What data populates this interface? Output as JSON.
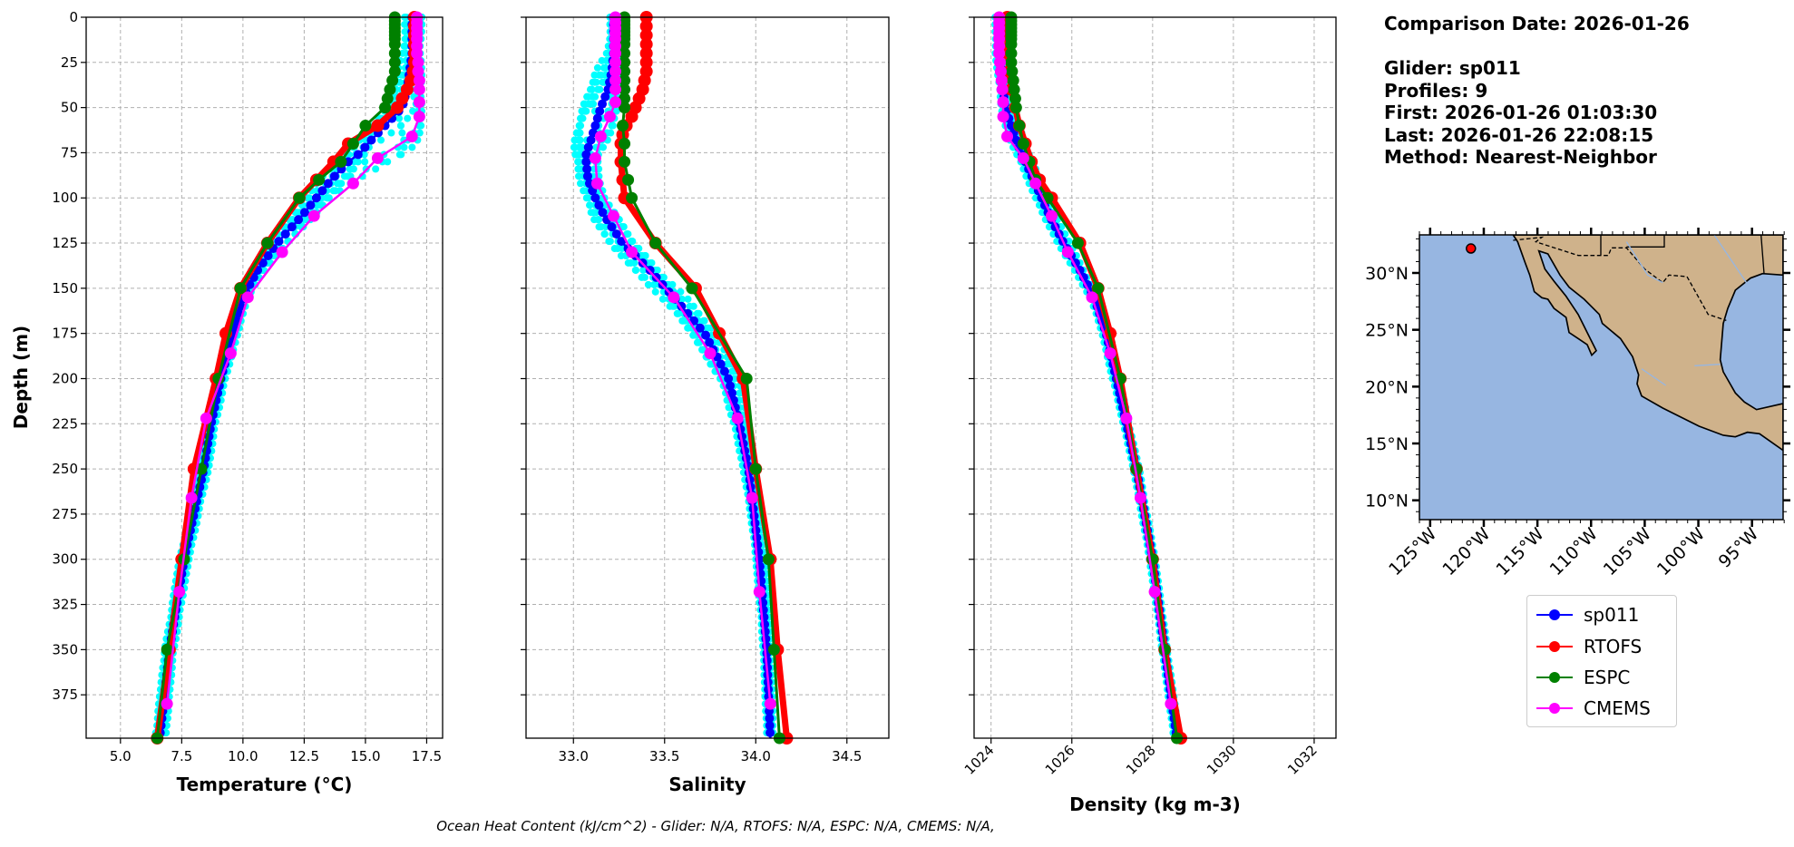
{
  "info": {
    "comparison_date": "Comparison Date: 2026-01-26",
    "glider": "Glider: sp011",
    "profiles": "Profiles: 9",
    "first": "First: 2026-01-26 01:03:30",
    "last": "Last: 2026-01-26 22:08:15",
    "method": "Method: Nearest-Neighbor"
  },
  "ohc_text": "Ocean Heat Content (kJ/cm^2) - Glider: N/A,  RTOFS: N/A,  ESPC: N/A,  CMEMS: N/A,",
  "colors": {
    "sp011": "#0000ff",
    "RTOFS": "#ff0000",
    "ESPC": "#008000",
    "CMEMS": "#ff00ff",
    "profiles": "#00ffff",
    "ocean": "#97b6e1",
    "land": "#cfb28b"
  },
  "legend": [
    {
      "label": "sp011",
      "color": "#0000ff"
    },
    {
      "label": "RTOFS",
      "color": "#ff0000"
    },
    {
      "label": "ESPC",
      "color": "#008000"
    },
    {
      "label": "CMEMS",
      "color": "#ff00ff"
    }
  ],
  "map": {
    "lat_ticks": [
      "30°N",
      "25°N",
      "20°N",
      "15°N",
      "10°N"
    ],
    "lat_values": [
      30,
      25,
      20,
      15,
      10
    ],
    "lon_ticks": [
      "125°W",
      "120°W",
      "115°W",
      "110°W",
      "105°W",
      "100°W",
      "95°W"
    ],
    "lon_values": [
      -125,
      -120,
      -115,
      -110,
      -105,
      -100,
      -95
    ],
    "extent": {
      "lon": [
        -126.0,
        -92.1
      ],
      "lat": [
        8.3,
        33.35
      ]
    },
    "glider_position": {
      "lon": -121.2,
      "lat": 32.15
    }
  },
  "chart_data": [
    {
      "type": "line",
      "xlabel": "Temperature (°C)",
      "ylabel": "Depth (m)",
      "xlim": [
        3.6,
        18.15
      ],
      "ylim": [
        399,
        0
      ],
      "xticks": [
        5.0,
        7.5,
        10.0,
        12.5,
        15.0,
        17.5
      ],
      "xtick_labels": [
        "5.0",
        "7.5",
        "10.0",
        "12.5",
        "15.0",
        "17.5"
      ],
      "yticks": [
        0,
        25,
        50,
        75,
        100,
        125,
        150,
        175,
        200,
        225,
        250,
        275,
        300,
        325,
        350,
        375
      ],
      "grid": true,
      "profiles_envelope": {
        "depth": [
          0,
          10,
          20,
          30,
          40,
          50,
          60,
          70,
          75,
          80,
          90,
          100,
          110,
          125,
          140,
          155,
          175,
          200,
          225,
          250,
          275,
          300,
          325,
          350,
          375,
          399
        ],
        "min": [
          16.6,
          16.6,
          16.5,
          16.3,
          16.1,
          15.9,
          15.3,
          14.6,
          14.2,
          13.7,
          13.1,
          12.6,
          12.0,
          11.1,
          10.3,
          9.8,
          9.4,
          8.9,
          8.5,
          8.2,
          7.8,
          7.4,
          7.1,
          6.8,
          6.6,
          6.4
        ],
        "max": [
          17.3,
          17.3,
          17.3,
          17.3,
          17.3,
          17.3,
          17.3,
          17.1,
          16.8,
          16.0,
          14.6,
          13.6,
          12.9,
          11.8,
          10.9,
          10.2,
          9.8,
          9.3,
          8.9,
          8.6,
          8.2,
          7.8,
          7.5,
          7.2,
          7.0,
          6.9
        ]
      },
      "series": [
        {
          "name": "sp011",
          "depth": [
            0,
            10,
            20,
            30,
            40,
            50,
            60,
            70,
            75,
            80,
            90,
            100,
            110,
            125,
            140,
            155,
            175,
            200,
            225,
            250,
            275,
            300,
            325,
            350,
            375,
            399
          ],
          "values": [
            16.9,
            16.9,
            16.9,
            16.8,
            16.7,
            16.5,
            15.8,
            15.1,
            14.8,
            14.3,
            13.6,
            13.0,
            12.4,
            11.4,
            10.6,
            10.0,
            9.6,
            9.1,
            8.7,
            8.4,
            8.0,
            7.6,
            7.3,
            7.0,
            6.8,
            6.6
          ]
        },
        {
          "name": "RTOFS",
          "depth": [
            0,
            5,
            10,
            15,
            20,
            25,
            30,
            35,
            40,
            45,
            50,
            60,
            70,
            80,
            90,
            100,
            125,
            150,
            175,
            200,
            250,
            300,
            350,
            399
          ],
          "values": [
            17.0,
            17.0,
            17.0,
            17.0,
            17.0,
            17.0,
            16.95,
            16.85,
            16.7,
            16.5,
            16.3,
            15.5,
            14.3,
            13.7,
            13.0,
            12.3,
            11.0,
            9.9,
            9.3,
            8.9,
            8.0,
            7.5,
            7.0,
            6.5
          ]
        },
        {
          "name": "ESPC",
          "depth": [
            0,
            2,
            4,
            6,
            8,
            10,
            12,
            15,
            20,
            25,
            30,
            35,
            40,
            45,
            50,
            60,
            70,
            80,
            90,
            100,
            125,
            150,
            200,
            250,
            300,
            350,
            399
          ],
          "values": [
            16.2,
            16.2,
            16.2,
            16.2,
            16.2,
            16.2,
            16.2,
            16.2,
            16.2,
            16.2,
            16.2,
            16.1,
            16.0,
            15.9,
            15.8,
            15.0,
            14.5,
            14.0,
            13.1,
            12.3,
            11.0,
            9.9,
            9.0,
            8.3,
            7.6,
            6.9,
            6.5
          ]
        },
        {
          "name": "CMEMS",
          "depth": [
            0,
            3,
            6,
            9,
            12,
            16,
            20,
            25,
            30,
            35,
            40,
            47,
            55,
            66,
            78,
            92,
            110,
            130,
            155,
            186,
            222,
            266,
            318,
            380
          ],
          "values": [
            17.1,
            17.1,
            17.1,
            17.1,
            17.1,
            17.1,
            17.1,
            17.15,
            17.15,
            17.2,
            17.2,
            17.2,
            17.2,
            16.9,
            15.5,
            14.5,
            12.9,
            11.6,
            10.2,
            9.5,
            8.5,
            7.9,
            7.4,
            6.9
          ]
        }
      ]
    },
    {
      "type": "line",
      "xlabel": "Salinity",
      "xlim": [
        32.74,
        34.73
      ],
      "ylim": [
        399,
        0
      ],
      "xticks": [
        33.0,
        33.5,
        34.0,
        34.5
      ],
      "xtick_labels": [
        "33.0",
        "33.5",
        "34.0",
        "34.5"
      ],
      "yticks": [
        0,
        25,
        50,
        75,
        100,
        125,
        150,
        175,
        200,
        225,
        250,
        275,
        300,
        325,
        350,
        375
      ],
      "grid": true,
      "profiles_envelope": {
        "depth": [
          0,
          10,
          20,
          30,
          40,
          50,
          60,
          70,
          75,
          80,
          90,
          100,
          110,
          125,
          140,
          155,
          175,
          200,
          225,
          250,
          275,
          300,
          325,
          350,
          375,
          399
        ],
        "min": [
          33.2,
          33.2,
          33.18,
          33.12,
          33.08,
          33.05,
          33.03,
          33.0,
          33.0,
          33.01,
          33.03,
          33.07,
          33.1,
          33.2,
          33.33,
          33.48,
          33.65,
          33.8,
          33.88,
          33.93,
          33.97,
          34.0,
          34.02,
          34.04,
          34.05,
          34.06
        ],
        "max": [
          33.25,
          33.25,
          33.25,
          33.25,
          33.25,
          33.24,
          33.22,
          33.18,
          33.15,
          33.14,
          33.14,
          33.18,
          33.24,
          33.33,
          33.47,
          33.62,
          33.78,
          33.92,
          33.95,
          33.99,
          34.02,
          34.05,
          34.07,
          34.08,
          34.09,
          34.1
        ]
      },
      "series": [
        {
          "name": "sp011",
          "depth": [
            0,
            10,
            20,
            30,
            40,
            50,
            60,
            70,
            75,
            80,
            90,
            100,
            110,
            125,
            140,
            155,
            175,
            200,
            225,
            250,
            275,
            300,
            325,
            350,
            375,
            399
          ],
          "values": [
            33.22,
            33.22,
            33.22,
            33.21,
            33.19,
            33.15,
            33.12,
            33.09,
            33.07,
            33.07,
            33.08,
            33.12,
            33.17,
            33.27,
            33.42,
            33.55,
            33.72,
            33.85,
            33.91,
            33.96,
            33.99,
            34.02,
            34.04,
            34.06,
            34.07,
            34.08
          ]
        },
        {
          "name": "RTOFS",
          "depth": [
            0,
            5,
            10,
            15,
            20,
            25,
            30,
            35,
            40,
            45,
            50,
            55,
            60,
            65,
            70,
            80,
            90,
            100,
            125,
            150,
            175,
            200,
            250,
            300,
            350,
            399
          ],
          "values": [
            33.4,
            33.4,
            33.4,
            33.4,
            33.4,
            33.4,
            33.4,
            33.39,
            33.38,
            33.36,
            33.34,
            33.32,
            33.29,
            33.27,
            33.26,
            33.26,
            33.27,
            33.28,
            33.45,
            33.67,
            33.8,
            33.93,
            34.0,
            34.08,
            34.12,
            34.17
          ]
        },
        {
          "name": "ESPC",
          "depth": [
            0,
            2,
            4,
            6,
            8,
            10,
            12,
            15,
            20,
            25,
            30,
            35,
            40,
            45,
            50,
            60,
            70,
            80,
            90,
            100,
            125,
            150,
            200,
            250,
            300,
            350,
            399
          ],
          "values": [
            33.28,
            33.28,
            33.28,
            33.28,
            33.28,
            33.28,
            33.28,
            33.28,
            33.28,
            33.28,
            33.28,
            33.28,
            33.28,
            33.28,
            33.28,
            33.27,
            33.28,
            33.28,
            33.3,
            33.32,
            33.45,
            33.65,
            33.95,
            34.0,
            34.07,
            34.1,
            34.13
          ]
        },
        {
          "name": "CMEMS",
          "depth": [
            0,
            3,
            6,
            9,
            12,
            16,
            20,
            25,
            30,
            35,
            40,
            47,
            55,
            66,
            78,
            92,
            110,
            130,
            155,
            186,
            222,
            266,
            318,
            380
          ],
          "values": [
            33.23,
            33.23,
            33.23,
            33.23,
            33.23,
            33.23,
            33.23,
            33.23,
            33.23,
            33.23,
            33.23,
            33.23,
            33.2,
            33.15,
            33.12,
            33.13,
            33.22,
            33.32,
            33.55,
            33.75,
            33.9,
            33.98,
            34.02,
            34.08
          ]
        }
      ]
    },
    {
      "type": "line",
      "xlabel": "Density (kg m-3)",
      "xlim": [
        1023.58,
        1032.54
      ],
      "ylim": [
        399,
        0
      ],
      "xticks": [
        1024,
        1026,
        1028,
        1030,
        1032
      ],
      "xtick_labels": [
        "1024",
        "1026",
        "1028",
        "1030",
        "1032"
      ],
      "yticks": [
        0,
        25,
        50,
        75,
        100,
        125,
        150,
        175,
        200,
        225,
        250,
        275,
        300,
        325,
        350,
        375
      ],
      "grid": true,
      "profiles_envelope": {
        "depth": [
          0,
          10,
          20,
          30,
          40,
          50,
          60,
          70,
          75,
          80,
          90,
          100,
          110,
          125,
          140,
          155,
          175,
          200,
          225,
          250,
          275,
          300,
          325,
          350,
          375,
          399
        ],
        "min": [
          1024.1,
          1024.1,
          1024.1,
          1024.15,
          1024.2,
          1024.25,
          1024.35,
          1024.5,
          1024.6,
          1024.7,
          1024.9,
          1025.1,
          1025.3,
          1025.65,
          1026.05,
          1026.45,
          1026.75,
          1027.0,
          1027.27,
          1027.52,
          1027.72,
          1027.92,
          1028.08,
          1028.23,
          1028.38,
          1028.52
        ],
        "max": [
          1024.3,
          1024.3,
          1024.3,
          1024.35,
          1024.45,
          1024.55,
          1024.7,
          1024.85,
          1024.95,
          1025.05,
          1025.2,
          1025.4,
          1025.6,
          1025.95,
          1026.3,
          1026.65,
          1026.95,
          1027.18,
          1027.42,
          1027.67,
          1027.87,
          1028.07,
          1028.22,
          1028.37,
          1028.52,
          1028.67
        ]
      },
      "series": [
        {
          "name": "sp011",
          "depth": [
            0,
            10,
            20,
            30,
            40,
            50,
            60,
            70,
            75,
            80,
            90,
            100,
            110,
            125,
            140,
            155,
            175,
            200,
            225,
            250,
            275,
            300,
            325,
            350,
            375,
            399
          ],
          "values": [
            1024.2,
            1024.2,
            1024.2,
            1024.25,
            1024.3,
            1024.35,
            1024.5,
            1024.65,
            1024.75,
            1024.85,
            1025.05,
            1025.25,
            1025.45,
            1025.8,
            1026.2,
            1026.55,
            1026.85,
            1027.1,
            1027.35,
            1027.6,
            1027.8,
            1028.0,
            1028.15,
            1028.3,
            1028.45,
            1028.6
          ]
        },
        {
          "name": "RTOFS",
          "depth": [
            0,
            10,
            20,
            30,
            40,
            50,
            60,
            70,
            80,
            90,
            100,
            125,
            150,
            175,
            200,
            250,
            300,
            350,
            399
          ],
          "values": [
            1024.4,
            1024.4,
            1024.42,
            1024.45,
            1024.5,
            1024.6,
            1024.7,
            1024.85,
            1025.0,
            1025.2,
            1025.5,
            1026.2,
            1026.65,
            1026.95,
            1027.2,
            1027.6,
            1028.0,
            1028.3,
            1028.7
          ]
        },
        {
          "name": "ESPC",
          "depth": [
            0,
            2,
            4,
            6,
            8,
            10,
            12,
            15,
            20,
            25,
            30,
            35,
            40,
            45,
            50,
            60,
            70,
            80,
            90,
            100,
            125,
            150,
            200,
            250,
            300,
            350,
            399
          ],
          "values": [
            1024.5,
            1024.5,
            1024.5,
            1024.5,
            1024.5,
            1024.5,
            1024.5,
            1024.5,
            1024.5,
            1024.5,
            1024.52,
            1024.55,
            1024.57,
            1024.6,
            1024.62,
            1024.7,
            1024.8,
            1024.95,
            1025.1,
            1025.4,
            1026.15,
            1026.65,
            1027.2,
            1027.6,
            1028.0,
            1028.3,
            1028.6
          ]
        },
        {
          "name": "CMEMS",
          "depth": [
            0,
            3,
            6,
            9,
            12,
            16,
            20,
            25,
            30,
            35,
            40,
            47,
            55,
            66,
            78,
            92,
            110,
            130,
            155,
            186,
            222,
            266,
            318,
            380
          ],
          "values": [
            1024.2,
            1024.2,
            1024.2,
            1024.2,
            1024.2,
            1024.2,
            1024.2,
            1024.22,
            1024.24,
            1024.26,
            1024.28,
            1024.3,
            1024.3,
            1024.4,
            1024.8,
            1025.1,
            1025.5,
            1025.9,
            1026.5,
            1026.95,
            1027.35,
            1027.7,
            1028.05,
            1028.45
          ]
        }
      ]
    }
  ]
}
